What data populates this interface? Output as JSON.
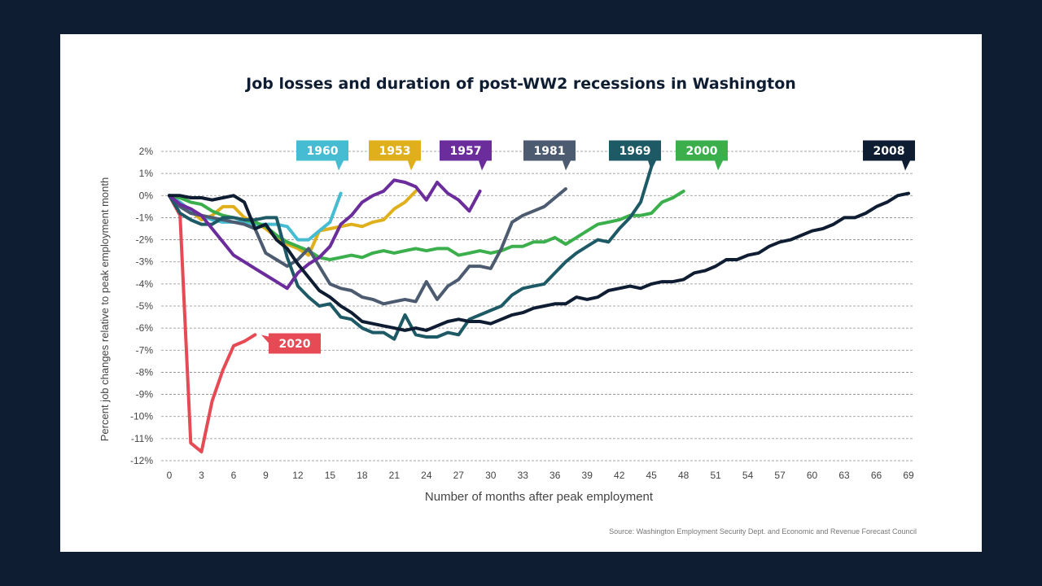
{
  "chart_data": {
    "type": "line",
    "title": "Job losses and duration of post-WW2 recessions in Washington",
    "xlabel": "Number of months after peak employment",
    "ylabel": "Percent job changes relative to peak employment month",
    "source": "Source: Washington Employment Security Dept. and Economic and Revenue Forecast Council",
    "xlim": [
      0,
      69
    ],
    "ylim": [
      -12,
      2
    ],
    "xticks": [
      0,
      3,
      6,
      9,
      12,
      15,
      18,
      21,
      24,
      27,
      30,
      33,
      36,
      39,
      42,
      45,
      48,
      51,
      54,
      57,
      60,
      63,
      66,
      69
    ],
    "xtick_labels": [
      "0",
      "3",
      "6",
      "9",
      "12",
      "15",
      "18",
      "21",
      "24",
      "27",
      "30",
      "33",
      "36",
      "39",
      "42",
      "45",
      "48",
      "51",
      "54",
      "57",
      "60",
      "63",
      "66",
      "69"
    ],
    "yticks": [
      2,
      1,
      0,
      -1,
      -2,
      -3,
      -4,
      -5,
      -6,
      -7,
      -8,
      -9,
      -10,
      -11,
      -12
    ],
    "ytick_labels": [
      "2%",
      "1%",
      "0%",
      "-1%",
      "-2%",
      "-3%",
      "-4%",
      "-5%",
      "-6%",
      "-7%",
      "-8%",
      "-9%",
      "-10%",
      "-11%",
      "-12%"
    ],
    "grid": "horizontal dashed",
    "series": [
      {
        "name": "1953",
        "color": "#e0b01c",
        "x": [
          0,
          1,
          2,
          3,
          4,
          5,
          6,
          7,
          8,
          9,
          10,
          11,
          12,
          13,
          14,
          15,
          16,
          17,
          18,
          19,
          20,
          21,
          22,
          23
        ],
        "y": [
          0,
          -0.3,
          -0.7,
          -1.1,
          -0.9,
          -0.5,
          -0.5,
          -1.0,
          -1.2,
          -1.5,
          -1.9,
          -2.2,
          -2.4,
          -2.7,
          -1.6,
          -1.5,
          -1.4,
          -1.3,
          -1.4,
          -1.2,
          -1.1,
          -0.6,
          -0.3,
          0.2
        ]
      },
      {
        "name": "1957",
        "color": "#6b2d9c",
        "x": [
          0,
          1,
          2,
          3,
          4,
          5,
          6,
          7,
          8,
          9,
          10,
          11,
          12,
          13,
          14,
          15,
          16,
          17,
          18,
          19,
          20,
          21,
          22,
          23,
          24,
          25,
          26,
          27,
          28,
          29
        ],
        "y": [
          0,
          -0.4,
          -0.6,
          -0.9,
          -1.5,
          -2.1,
          -2.7,
          -3.0,
          -3.3,
          -3.6,
          -3.9,
          -4.2,
          -3.5,
          -3.1,
          -2.8,
          -2.3,
          -1.3,
          -0.9,
          -0.3,
          0,
          0.2,
          0.7,
          0.6,
          0.4,
          -0.2,
          0.6,
          0.1,
          -0.2,
          -0.7,
          0.2
        ]
      },
      {
        "name": "1960",
        "color": "#45bcd2",
        "x": [
          0,
          1,
          2,
          3,
          4,
          5,
          6,
          7,
          8,
          9,
          10,
          11,
          12,
          13,
          14,
          15,
          16
        ],
        "y": [
          0,
          -0.3,
          -0.7,
          -0.9,
          -1.1,
          -1.2,
          -1.2,
          -1.2,
          -1.3,
          -1.3,
          -1.3,
          -1.4,
          -2.0,
          -2.0,
          -1.6,
          -1.2,
          0.1
        ]
      },
      {
        "name": "1969",
        "color": "#1e5a66",
        "x": [
          0,
          1,
          2,
          3,
          4,
          5,
          6,
          7,
          8,
          9,
          10,
          11,
          12,
          13,
          14,
          15,
          16,
          17,
          18,
          19,
          20,
          21,
          22,
          23,
          24,
          25,
          26,
          27,
          28,
          29,
          30,
          31,
          32,
          33,
          34,
          35,
          36,
          37,
          38,
          39,
          40,
          41,
          42,
          43,
          44,
          45
        ],
        "y": [
          0,
          -0.8,
          -1.1,
          -1.3,
          -1.3,
          -1.0,
          -1.0,
          -1.1,
          -1.1,
          -1.0,
          -1.0,
          -2.8,
          -4.1,
          -4.6,
          -5.0,
          -4.9,
          -5.5,
          -5.6,
          -6.0,
          -6.2,
          -6.2,
          -6.5,
          -5.4,
          -6.3,
          -6.4,
          -6.4,
          -6.2,
          -6.3,
          -5.6,
          -5.4,
          -5.2,
          -5.0,
          -4.5,
          -4.2,
          -4.1,
          -4.0,
          -3.5,
          -3.0,
          -2.6,
          -2.3,
          -2.0,
          -2.1,
          -1.5,
          -1.0,
          -0.3,
          1.3
        ]
      },
      {
        "name": "1981",
        "color": "#4c5b70",
        "x": [
          0,
          1,
          2,
          3,
          4,
          5,
          6,
          7,
          8,
          9,
          10,
          11,
          12,
          13,
          14,
          15,
          16,
          17,
          18,
          19,
          20,
          21,
          22,
          23,
          24,
          25,
          26,
          27,
          28,
          29,
          30,
          31,
          32,
          33,
          34,
          35,
          36,
          37
        ],
        "y": [
          0,
          -0.5,
          -0.8,
          -0.9,
          -1.0,
          -1.1,
          -1.2,
          -1.3,
          -1.5,
          -2.6,
          -2.9,
          -3.2,
          -2.9,
          -2.4,
          -3.2,
          -4.0,
          -4.2,
          -4.3,
          -4.6,
          -4.7,
          -4.9,
          -4.8,
          -4.7,
          -4.8,
          -3.9,
          -4.7,
          -4.1,
          -3.8,
          -3.2,
          -3.2,
          -3.3,
          -2.4,
          -1.2,
          -0.9,
          -0.7,
          -0.5,
          -0.1,
          0.3
        ]
      },
      {
        "name": "2000",
        "color": "#3aaf4b",
        "x": [
          0,
          1,
          2,
          3,
          4,
          5,
          6,
          7,
          8,
          9,
          10,
          11,
          12,
          13,
          14,
          15,
          16,
          17,
          18,
          19,
          20,
          21,
          22,
          23,
          24,
          25,
          26,
          27,
          28,
          29,
          30,
          31,
          32,
          33,
          34,
          35,
          36,
          37,
          38,
          39,
          40,
          41,
          42,
          43,
          44,
          45,
          46,
          47,
          48
        ],
        "y": [
          0,
          -0.1,
          -0.3,
          -0.4,
          -0.7,
          -0.9,
          -1.0,
          -1.1,
          -1.2,
          -1.4,
          -1.8,
          -2.1,
          -2.3,
          -2.5,
          -2.8,
          -2.9,
          -2.8,
          -2.7,
          -2.8,
          -2.6,
          -2.5,
          -2.6,
          -2.5,
          -2.4,
          -2.5,
          -2.4,
          -2.4,
          -2.7,
          -2.6,
          -2.5,
          -2.6,
          -2.5,
          -2.3,
          -2.3,
          -2.1,
          -2.1,
          -1.9,
          -2.2,
          -1.9,
          -1.6,
          -1.3,
          -1.2,
          -1.1,
          -0.9,
          -0.9,
          -0.8,
          -0.3,
          -0.1,
          0.2
        ]
      },
      {
        "name": "2008",
        "color": "#0f1d33",
        "x": [
          0,
          1,
          2,
          3,
          4,
          5,
          6,
          7,
          8,
          9,
          10,
          11,
          12,
          13,
          14,
          15,
          16,
          17,
          18,
          19,
          20,
          21,
          22,
          23,
          24,
          25,
          26,
          27,
          28,
          29,
          30,
          31,
          32,
          33,
          34,
          35,
          36,
          37,
          38,
          39,
          40,
          41,
          42,
          43,
          44,
          45,
          46,
          47,
          48,
          49,
          50,
          51,
          52,
          53,
          54,
          55,
          56,
          57,
          58,
          59,
          60,
          61,
          62,
          63,
          64,
          65,
          66,
          67,
          68,
          69
        ],
        "y": [
          0,
          0,
          -0.1,
          -0.1,
          -0.2,
          -0.1,
          0,
          -0.3,
          -1.5,
          -1.3,
          -2.0,
          -2.4,
          -3.1,
          -3.7,
          -4.3,
          -4.6,
          -5.0,
          -5.3,
          -5.7,
          -5.8,
          -5.9,
          -6.0,
          -6.1,
          -6.0,
          -6.1,
          -5.9,
          -5.7,
          -5.6,
          -5.7,
          -5.7,
          -5.8,
          -5.6,
          -5.4,
          -5.3,
          -5.1,
          -5.0,
          -4.9,
          -4.9,
          -4.6,
          -4.7,
          -4.6,
          -4.3,
          -4.2,
          -4.1,
          -4.2,
          -4.0,
          -3.9,
          -3.9,
          -3.8,
          -3.5,
          -3.4,
          -3.2,
          -2.9,
          -2.9,
          -2.7,
          -2.6,
          -2.3,
          -2.1,
          -2.0,
          -1.8,
          -1.6,
          -1.5,
          -1.3,
          -1.0,
          -1.0,
          -0.8,
          -0.5,
          -0.3,
          0,
          0.1
        ]
      },
      {
        "name": "2020",
        "color": "#e64a55",
        "x": [
          0,
          1,
          2,
          3,
          4,
          5,
          6,
          7,
          8
        ],
        "y": [
          0,
          -0.9,
          -11.2,
          -11.6,
          -9.3,
          -7.9,
          -6.8,
          -6.6,
          -6.3
        ]
      }
    ]
  }
}
